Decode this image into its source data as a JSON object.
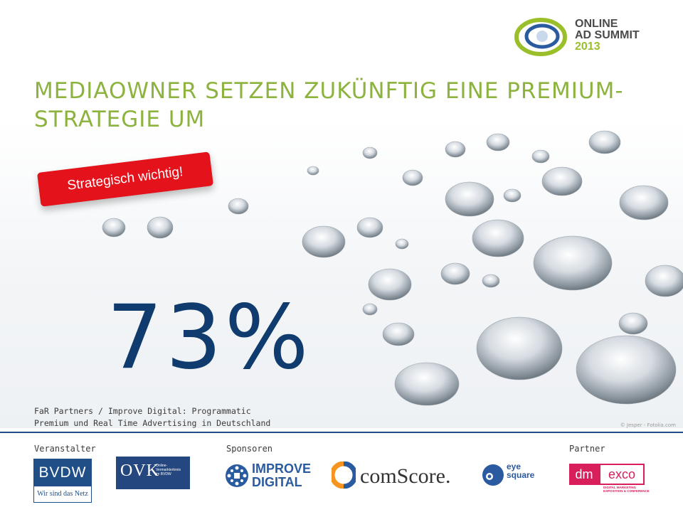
{
  "header": {
    "title": "MEDIAOWNER SETZEN ZUKÜNFTIG EINE PREMIUM-STRATEGIE UM",
    "event_logo": {
      "line1": "ONLINE",
      "line2": "AD SUMMIT",
      "year": "2013",
      "icon": "ring-logo-icon"
    }
  },
  "badge": {
    "label": "Strategisch wichtig!",
    "color": "#e3121b"
  },
  "statistic": {
    "value": "73%",
    "color": "#0f3b6e"
  },
  "source": {
    "line1": "FaR Partners / Improve Digital:  Programmatic",
    "line2": "Premium und Real Time Advertising in Deutschland"
  },
  "image_credit": "© Jesper - Fotolia.com",
  "footer": {
    "veranstalter_label": "Veranstalter",
    "sponsoren_label": "Sponsoren",
    "partner_label": "Partner",
    "bvdw": {
      "name": "BVDW",
      "tagline": "Wir sind das Netz"
    },
    "ovk": {
      "name": "OVK",
      "desc1": "Online-",
      "desc2": "Vermarkterkreis",
      "desc3": "im BVDW"
    },
    "improve_digital": {
      "line1": "IMPROVE",
      "line2": "DIGITAL"
    },
    "comscore": {
      "name": "comScore."
    },
    "eye_square": {
      "line1": "eye",
      "line2": "square"
    },
    "dmexco": {
      "dm": "dm",
      "exco": "exco",
      "tag1": "DIGITAL MARKETING",
      "tag2": "EXPOSITION & CONFERENCE"
    }
  },
  "colors": {
    "title_green": "#8db33f",
    "brand_blue": "#1f4f86",
    "accent_red": "#e3121b"
  }
}
